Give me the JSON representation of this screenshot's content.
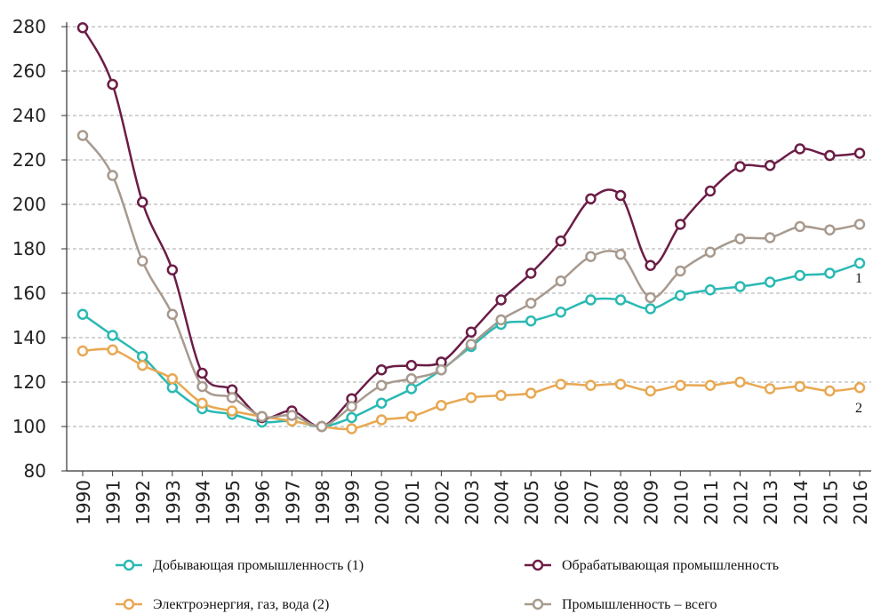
{
  "chart_data": {
    "type": "line",
    "categories": [
      "1990",
      "1991",
      "1992",
      "1993",
      "1994",
      "1995",
      "1996",
      "1997",
      "1998",
      "1999",
      "2000",
      "2001",
      "2002",
      "2003",
      "2004",
      "2005",
      "2006",
      "2007",
      "2008",
      "2009",
      "2010",
      "2011",
      "2012",
      "2013",
      "2014",
      "2015",
      "2016"
    ],
    "series": [
      {
        "name": "Добывающая промышленность (1)",
        "color": "#2bb9b4",
        "values": [
          150.5,
          141,
          131.5,
          117.5,
          108,
          105.5,
          102,
          102.5,
          100,
          104,
          110.5,
          117,
          125.5,
          136,
          146,
          147.5,
          151.5,
          157,
          157,
          153,
          159,
          161.5,
          163,
          165,
          168,
          169,
          173.5
        ]
      },
      {
        "name": "Обрабатывающая промышленность",
        "color": "#6b1d46",
        "values": [
          279.5,
          254,
          201,
          170.5,
          124,
          116.5,
          104,
          107,
          100,
          112.5,
          125.5,
          127.5,
          129,
          142.5,
          157,
          169,
          183.5,
          202.5,
          204,
          172.5,
          191,
          206,
          217,
          217.5,
          225,
          222,
          223
        ]
      },
      {
        "name": "Электроэнергия, газ, вода (2)",
        "color": "#e8a852",
        "values": [
          134,
          134.5,
          127.5,
          121.5,
          110.5,
          107,
          104.5,
          102.5,
          100,
          99,
          103,
          104.5,
          109.5,
          113,
          114,
          115,
          119,
          118.5,
          119,
          116,
          118.5,
          118.5,
          120,
          117,
          118,
          116,
          117.5
        ]
      },
      {
        "name": "Промышленность – всего",
        "color": "#a89a8e",
        "values": [
          231,
          213,
          174.5,
          150.5,
          118,
          113,
          104.5,
          105,
          100,
          109,
          118.5,
          121.5,
          125.5,
          137,
          148,
          155.5,
          165.5,
          176.5,
          177.5,
          158,
          170,
          178.5,
          184.5,
          185,
          190,
          188.5,
          191
        ]
      }
    ],
    "annotations": [
      "1",
      "2"
    ],
    "ylim": [
      80,
      280
    ],
    "yticks": [
      80,
      100,
      120,
      140,
      160,
      180,
      200,
      220,
      240,
      260,
      280
    ],
    "grid": true
  }
}
